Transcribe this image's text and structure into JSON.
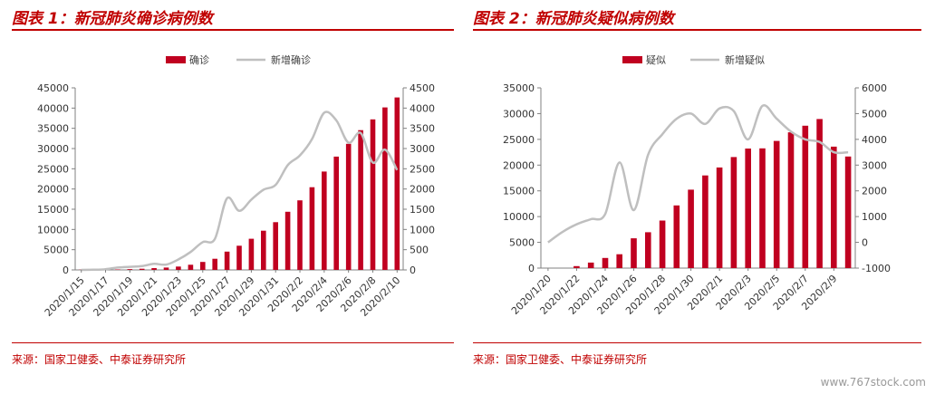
{
  "charts": [
    {
      "figure_title": "图表 1：新冠肺炎确诊病例数",
      "source": "来源：国家卫健委、中泰证券研究所",
      "chart_data": {
        "type": "bar",
        "x": [
          "2020/1/15",
          "2020/1/16",
          "2020/1/17",
          "2020/1/18",
          "2020/1/19",
          "2020/1/20",
          "2020/1/21",
          "2020/1/22",
          "2020/1/23",
          "2020/1/24",
          "2020/1/25",
          "2020/1/26",
          "2020/1/27",
          "2020/1/28",
          "2020/1/29",
          "2020/1/30",
          "2020/1/31",
          "2020/2/1",
          "2020/2/2",
          "2020/2/3",
          "2020/2/4",
          "2020/2/5",
          "2020/2/6",
          "2020/2/7",
          "2020/2/8",
          "2020/2/9",
          "2020/2/10"
        ],
        "x_tick_labels": [
          "2020/1/15",
          "2020/1/17",
          "2020/1/19",
          "2020/1/21",
          "2020/1/23",
          "2020/1/25",
          "2020/1/27",
          "2020/1/29",
          "2020/1/31",
          "2020/2/2",
          "2020/2/4",
          "2020/2/6",
          "2020/2/8",
          "2020/2/10"
        ],
        "series": [
          {
            "name": "确诊",
            "type": "bar",
            "axis": "left",
            "color": "#c00020",
            "values": [
              41,
              45,
              62,
              121,
              198,
              291,
              440,
              571,
              830,
              1287,
              1975,
              2744,
              4515,
              5974,
              7711,
              9692,
              11791,
              14380,
              17205,
              20438,
              24324,
              28018,
              31161,
              34546,
              37198,
              40171,
              42638
            ]
          },
          {
            "name": "新增确诊",
            "type": "line",
            "axis": "right",
            "color": "#bfbfbf",
            "values": [
              0,
              4,
              17,
              59,
              77,
              93,
              149,
              131,
              259,
              444,
              688,
              769,
              1771,
              1459,
              1737,
              1982,
              2102,
              2590,
              2829,
              3235,
              3887,
              3694,
              3143,
              3385,
              2652,
              2973,
              2467
            ]
          }
        ],
        "y_left": {
          "min": 0,
          "max": 45000,
          "ticks": [
            0,
            5000,
            10000,
            15000,
            20000,
            25000,
            30000,
            35000,
            40000,
            45000
          ]
        },
        "y_right": {
          "min": 0,
          "max": 4500,
          "ticks": [
            0,
            500,
            1000,
            1500,
            2000,
            2500,
            3000,
            3500,
            4000,
            4500
          ]
        },
        "legend_position": "top-center",
        "grid": false
      }
    },
    {
      "figure_title": "图表 2：新冠肺炎疑似病例数",
      "source": "来源：国家卫健委、中泰证券研究所",
      "chart_data": {
        "type": "bar",
        "x": [
          "2020/1/20",
          "2020/1/21",
          "2020/1/22",
          "2020/1/23",
          "2020/1/24",
          "2020/1/25",
          "2020/1/26",
          "2020/1/27",
          "2020/1/28",
          "2020/1/29",
          "2020/1/30",
          "2020/1/31",
          "2020/2/1",
          "2020/2/2",
          "2020/2/3",
          "2020/2/4",
          "2020/2/5",
          "2020/2/6",
          "2020/2/7",
          "2020/2/8",
          "2020/2/9",
          "2020/2/10"
        ],
        "x_tick_labels": [
          "2020/1/20",
          "2020/1/22",
          "2020/1/24",
          "2020/1/26",
          "2020/1/28",
          "2020/1/30",
          "2020/2/1",
          "2020/2/3",
          "2020/2/5",
          "2020/2/7",
          "2020/2/9"
        ],
        "series": [
          {
            "name": "疑似",
            "type": "bar",
            "axis": "left",
            "color": "#c00020",
            "values": [
              0,
              0,
              393,
              1072,
              1965,
              2684,
              5794,
              6973,
              9239,
              12167,
              15238,
              17988,
              19544,
              21558,
              23214,
              23260,
              24702,
              26359,
              27657,
              28942,
              23589,
              21675
            ]
          },
          {
            "name": "新增疑似",
            "type": "line",
            "axis": "right",
            "color": "#bfbfbf",
            "values": [
              0,
              400,
              700,
              900,
              1100,
              3100,
              1250,
              3400,
              4200,
              4800,
              5000,
              4600,
              5200,
              5100,
              4000,
              5300,
              4800,
              4300,
              4000,
              3900,
              3500,
              3500
            ]
          }
        ],
        "y_left": {
          "min": 0,
          "max": 35000,
          "ticks": [
            0,
            5000,
            10000,
            15000,
            20000,
            25000,
            30000,
            35000
          ]
        },
        "y_right": {
          "min": -1000,
          "max": 6000,
          "ticks": [
            -1000,
            0,
            1000,
            2000,
            3000,
            4000,
            5000,
            6000
          ]
        },
        "legend_position": "top-center",
        "grid": false
      }
    }
  ],
  "watermark": "www.767stock.com"
}
